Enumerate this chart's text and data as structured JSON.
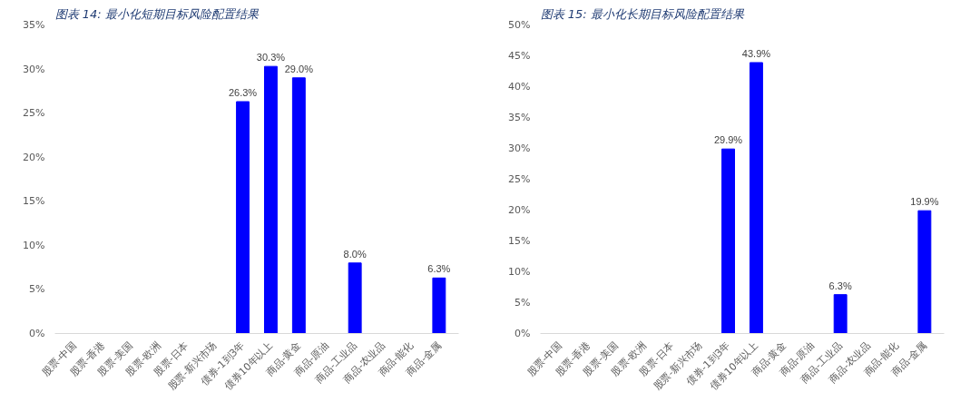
{
  "chart_data": [
    {
      "type": "bar",
      "title": "图表 14:  最小化短期目标风险配置结果",
      "categories": [
        "股票-中国",
        "股票-香港",
        "股票-美国",
        "股票-欧洲",
        "股票-日本",
        "股票-新兴市场",
        "债券-1到3年",
        "债券10年以上",
        "商品-黄金",
        "商品-原油",
        "商品-工业品",
        "商品-农业品",
        "商品-能化",
        "商品-金属"
      ],
      "values": [
        0,
        0,
        0,
        0,
        0,
        0,
        26.3,
        30.3,
        29.0,
        0,
        8.0,
        0,
        0,
        6.3
      ],
      "value_labels": [
        null,
        null,
        null,
        null,
        null,
        null,
        "26.3%",
        "30.3%",
        "29.0%",
        null,
        "8.0%",
        null,
        null,
        "6.3%"
      ],
      "color": "#0000ff",
      "ylim": [
        0,
        35
      ],
      "yticks": [
        {
          "value": 0,
          "label": "0%"
        },
        {
          "value": 5,
          "label": "5%"
        },
        {
          "value": 10,
          "label": "10%"
        },
        {
          "value": 15,
          "label": "15%"
        },
        {
          "value": 20,
          "label": "20%"
        },
        {
          "value": 25,
          "label": "25%"
        },
        {
          "value": 30,
          "label": "30%"
        },
        {
          "value": 35,
          "label": "35%"
        }
      ],
      "grid": false
    },
    {
      "type": "bar",
      "title": "图表 15:  最小化长期目标风险配置结果",
      "categories": [
        "股票-中国",
        "股票-香港",
        "股票-美国",
        "股票-欧洲",
        "股票-日本",
        "股票-新兴市场",
        "债券-1到3年",
        "债券10年以上",
        "商品-黄金",
        "商品-原油",
        "商品-工业品",
        "商品-农业品",
        "商品-能化",
        "商品-金属"
      ],
      "values": [
        0,
        0,
        0,
        0,
        0,
        0,
        29.9,
        43.9,
        0,
        0,
        6.3,
        0,
        0,
        19.9
      ],
      "value_labels": [
        null,
        null,
        null,
        null,
        null,
        null,
        "29.9%",
        "43.9%",
        null,
        null,
        "6.3%",
        null,
        null,
        "19.9%"
      ],
      "color": "#0000ff",
      "ylim": [
        0,
        50
      ],
      "yticks": [
        {
          "value": 0,
          "label": "0%"
        },
        {
          "value": 5,
          "label": "5%"
        },
        {
          "value": 10,
          "label": "10%"
        },
        {
          "value": 15,
          "label": "15%"
        },
        {
          "value": 20,
          "label": "20%"
        },
        {
          "value": 25,
          "label": "25%"
        },
        {
          "value": 30,
          "label": "30%"
        },
        {
          "value": 35,
          "label": "35%"
        },
        {
          "value": 40,
          "label": "40%"
        },
        {
          "value": 45,
          "label": "45%"
        },
        {
          "value": 50,
          "label": "50%"
        }
      ],
      "grid": false
    }
  ]
}
